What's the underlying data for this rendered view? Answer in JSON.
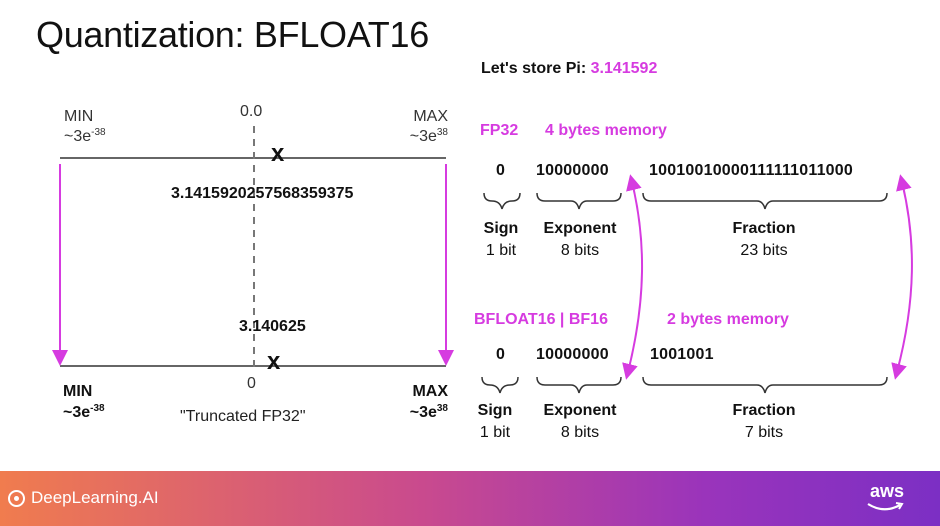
{
  "title": "Quantization: BFLOAT16",
  "pi": {
    "prefix": "Let's store Pi: ",
    "value": "3.141592"
  },
  "left": {
    "top_min_label": "MIN",
    "top_min_val": "~3e",
    "top_min_exp": "-38",
    "top_max_label": "MAX",
    "top_max_val": "~3e",
    "top_max_exp": "38",
    "top_zero": "0.0",
    "x_mark": "x",
    "fp32_value": "3.1415920257568359375",
    "bf16_value": "3.140625",
    "bottom_min_label": "MIN",
    "bottom_min_val": "~3e",
    "bottom_min_exp": "-38",
    "bottom_max_label": "MAX",
    "bottom_max_val": "~3e",
    "bottom_max_exp": "38",
    "bottom_zero": "0",
    "caption": "\"Truncated FP32\""
  },
  "fp32": {
    "name": "FP32",
    "memory": "4 bytes memory",
    "sign_bits": "0",
    "exponent_bits": "10000000",
    "fraction_bits": "10010010000111111011000",
    "sign_label": "Sign",
    "sign_size": "1 bit",
    "exponent_label": "Exponent",
    "exponent_size": "8 bits",
    "fraction_label": "Fraction",
    "fraction_size": "23 bits"
  },
  "bf16": {
    "name": "BFLOAT16 | BF16",
    "memory": "2 bytes memory",
    "sign_bits": "0",
    "exponent_bits": "10000000",
    "fraction_bits": "1001001",
    "sign_label": "Sign",
    "sign_size": "1 bit",
    "exponent_label": "Exponent",
    "exponent_size": "8 bits",
    "fraction_label": "Fraction",
    "fraction_size": "7 bits"
  },
  "footer": {
    "brand": "DeepLearning.AI",
    "partner": "aws"
  },
  "colors": {
    "accent": "#d63be0",
    "footer_start": "#f07c4e",
    "footer_end": "#7c2fc4"
  }
}
